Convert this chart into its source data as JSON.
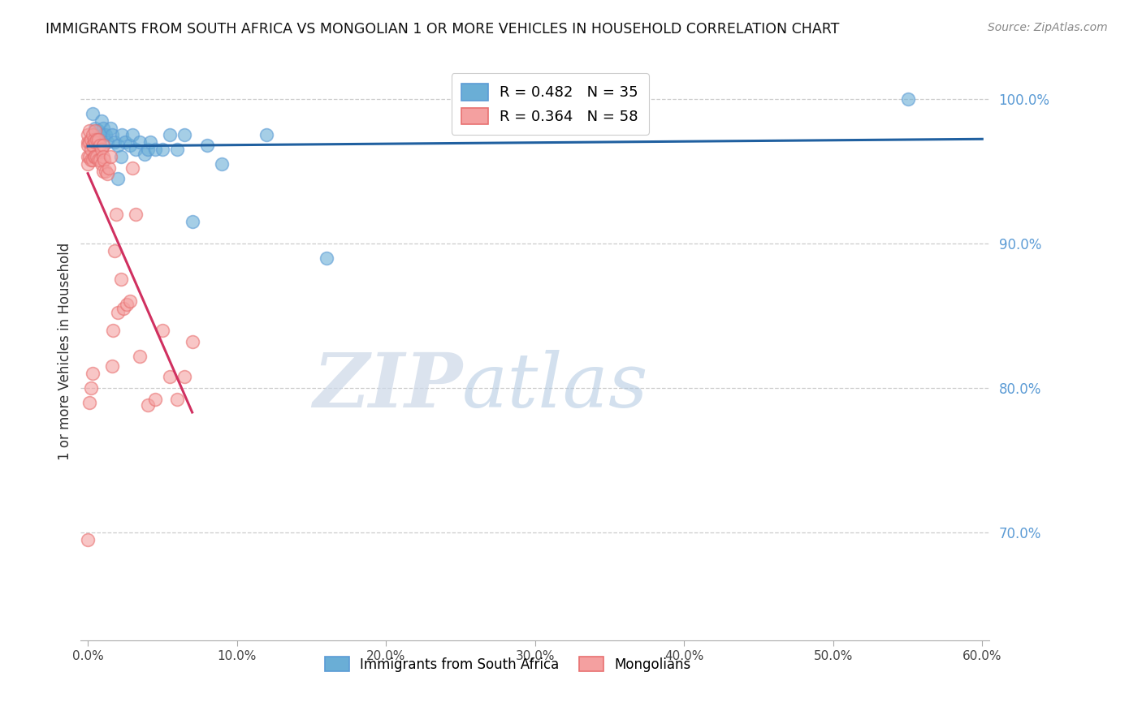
{
  "title": "IMMIGRANTS FROM SOUTH AFRICA VS MONGOLIAN 1 OR MORE VEHICLES IN HOUSEHOLD CORRELATION CHART",
  "source": "Source: ZipAtlas.com",
  "ylabel": "1 or more Vehicles in Household",
  "xlim": [
    -0.005,
    0.605
  ],
  "ylim": [
    0.625,
    1.025
  ],
  "xticks": [
    0.0,
    0.1,
    0.2,
    0.3,
    0.4,
    0.5,
    0.6
  ],
  "xticklabels": [
    "0.0%",
    "10.0%",
    "20.0%",
    "30.0%",
    "40.0%",
    "50.0%",
    "60.0%"
  ],
  "yticks": [
    0.7,
    0.8,
    0.9,
    1.0
  ],
  "yticklabels": [
    "70.0%",
    "80.0%",
    "90.0%",
    "100.0%"
  ],
  "legend_blue_label": "R = 0.482   N = 35",
  "legend_pink_label": "R = 0.364   N = 58",
  "legend1_label": "Immigrants from South Africa",
  "legend2_label": "Mongolians",
  "blue_color": "#6aaed6",
  "pink_color": "#f4a0a0",
  "blue_edge_color": "#5B9BD5",
  "pink_edge_color": "#e87070",
  "trend_blue_color": "#2060a0",
  "trend_pink_color": "#d03060",
  "watermark_zip": "ZIP",
  "watermark_atlas": "atlas",
  "blue_scatter_x": [
    0.003,
    0.005,
    0.007,
    0.008,
    0.009,
    0.01,
    0.01,
    0.012,
    0.013,
    0.015,
    0.016,
    0.018,
    0.02,
    0.02,
    0.022,
    0.023,
    0.025,
    0.028,
    0.03,
    0.032,
    0.035,
    0.038,
    0.04,
    0.042,
    0.045,
    0.05,
    0.055,
    0.06,
    0.065,
    0.07,
    0.08,
    0.09,
    0.12,
    0.16,
    0.55
  ],
  "blue_scatter_y": [
    0.99,
    0.98,
    0.978,
    0.972,
    0.985,
    0.98,
    0.975,
    0.975,
    0.97,
    0.98,
    0.975,
    0.97,
    0.968,
    0.945,
    0.96,
    0.975,
    0.97,
    0.968,
    0.975,
    0.965,
    0.97,
    0.962,
    0.965,
    0.97,
    0.965,
    0.965,
    0.975,
    0.965,
    0.975,
    0.915,
    0.968,
    0.955,
    0.975,
    0.89,
    1.0
  ],
  "pink_scatter_x": [
    0.0,
    0.0,
    0.0,
    0.0,
    0.0,
    0.001,
    0.001,
    0.001,
    0.002,
    0.002,
    0.002,
    0.003,
    0.003,
    0.003,
    0.004,
    0.004,
    0.005,
    0.005,
    0.005,
    0.006,
    0.006,
    0.007,
    0.007,
    0.008,
    0.008,
    0.009,
    0.009,
    0.01,
    0.01,
    0.01,
    0.011,
    0.012,
    0.013,
    0.014,
    0.015,
    0.016,
    0.017,
    0.018,
    0.019,
    0.02,
    0.022,
    0.024,
    0.026,
    0.028,
    0.03,
    0.032,
    0.035,
    0.04,
    0.045,
    0.05,
    0.055,
    0.06,
    0.065,
    0.07,
    0.0,
    0.001,
    0.002,
    0.003
  ],
  "pink_scatter_y": [
    0.97,
    0.975,
    0.968,
    0.96,
    0.955,
    0.978,
    0.97,
    0.96,
    0.972,
    0.965,
    0.958,
    0.975,
    0.968,
    0.958,
    0.972,
    0.96,
    0.978,
    0.97,
    0.96,
    0.972,
    0.96,
    0.972,
    0.958,
    0.968,
    0.958,
    0.965,
    0.955,
    0.968,
    0.96,
    0.95,
    0.958,
    0.95,
    0.948,
    0.952,
    0.96,
    0.815,
    0.84,
    0.895,
    0.92,
    0.852,
    0.875,
    0.855,
    0.858,
    0.86,
    0.952,
    0.92,
    0.822,
    0.788,
    0.792,
    0.84,
    0.808,
    0.792,
    0.808,
    0.832,
    0.695,
    0.79,
    0.8,
    0.81
  ]
}
